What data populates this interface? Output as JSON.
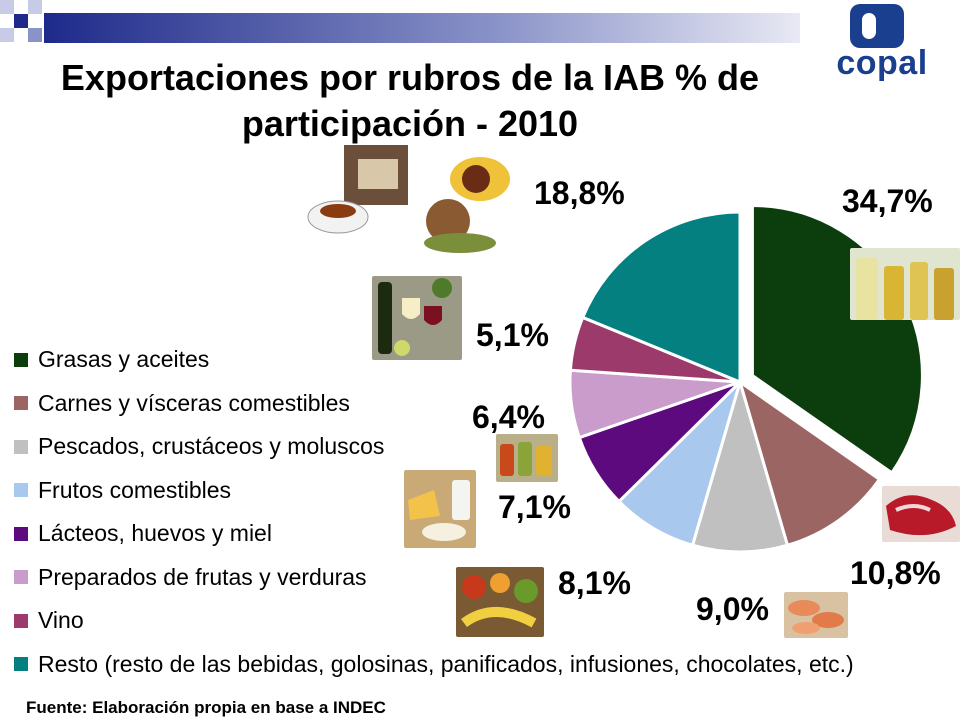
{
  "title": "Exportaciones por rubros de la IAB  % de\nparticipación - 2010",
  "source": "Fuente: Elaboración propia en base a INDEC",
  "logo": {
    "text": "copal"
  },
  "chart_data": {
    "type": "pie",
    "title": "Exportaciones por rubros de la IAB  % de participación - 2010",
    "slices": [
      {
        "name": "Grasas y aceites",
        "value": 34.7,
        "label": "34,7%",
        "color": "#0c3d0c"
      },
      {
        "name": "Carnes y vísceras comestibles",
        "value": 10.8,
        "label": "10,8%",
        "color": "#9b6563"
      },
      {
        "name": "Pescados, crustáceos y moluscos",
        "value": 9.0,
        "label": "9,0%",
        "color": "#c0c0c0"
      },
      {
        "name": "Frutos comestibles",
        "value": 8.1,
        "label": "8,1%",
        "color": "#a9c8ee"
      },
      {
        "name": "Lácteos, huevos y miel",
        "value": 7.1,
        "label": "7,1%",
        "color": "#5c0a7d"
      },
      {
        "name": "Preparados de frutas y verduras",
        "value": 6.4,
        "label": "6,4%",
        "color": "#c99ccb"
      },
      {
        "name": "Vino",
        "value": 5.1,
        "label": "5,1%",
        "color": "#9c3a6c"
      },
      {
        "name": "Resto (resto de las bebidas, golosinas, panificados, infusiones, chocolates, etc.)",
        "value": 18.8,
        "label": "18,8%",
        "color": "#058080"
      }
    ],
    "legend_position": "left"
  }
}
